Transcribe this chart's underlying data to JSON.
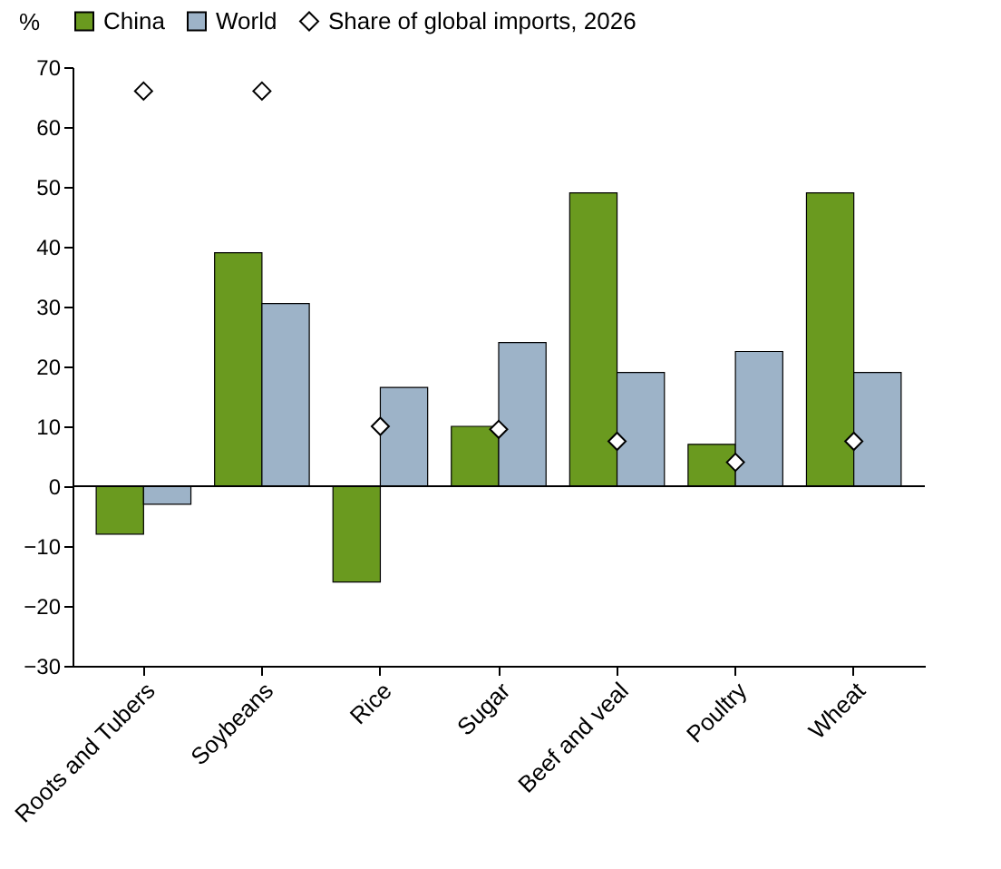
{
  "chart_data": {
    "type": "bar",
    "ylabel": "%",
    "categories": [
      "Roots and Tubers",
      "Soybeans",
      "Rice",
      "Sugar",
      "Beef and veal",
      "Poultry",
      "Wheat"
    ],
    "series": [
      {
        "name": "China",
        "color": "#6a9a1f",
        "values": [
          -8,
          39,
          -16,
          10,
          49,
          7,
          49
        ]
      },
      {
        "name": "World",
        "color": "#9db3c8",
        "values": [
          -3,
          30.5,
          16.5,
          24,
          19,
          22.5,
          19
        ]
      },
      {
        "name": "Share of global imports, 2026",
        "type": "scatter",
        "marker": "diamond",
        "color": "#ffffff",
        "x": [
          "Roots and Tubers",
          "Soybeans",
          "Rice",
          "Sugar",
          "Beef and veal",
          "Poultry",
          "Wheat"
        ],
        "values": [
          66,
          66,
          10,
          9.5,
          7.5,
          4,
          7.5
        ]
      }
    ],
    "ylim": [
      -30,
      70
    ],
    "yticks": [
      -30,
      -20,
      -10,
      0,
      10,
      20,
      30,
      40,
      50,
      60,
      70
    ],
    "ref_lines": [
      {
        "axis": "y",
        "value": 0
      }
    ],
    "grid": false,
    "legend": "top"
  }
}
